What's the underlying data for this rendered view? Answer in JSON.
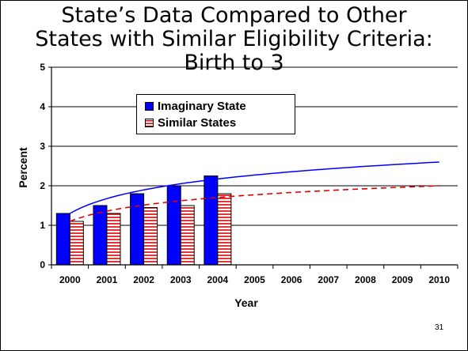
{
  "slide": {
    "title_lines": [
      "State’s Data Compared to Other",
      "States with Similar Eligibility Criteria:",
      "Birth to 3"
    ],
    "page_number": "31"
  },
  "colors": {
    "imaginary": "#0000ff",
    "similar_stripe": "#e00000",
    "similar_trend": "#e00000",
    "imaginary_trend": "#0000ff"
  },
  "chart_data": {
    "type": "bar",
    "categories": [
      "2000",
      "2001",
      "2002",
      "2003",
      "2004",
      "2005",
      "2006",
      "2007",
      "2008",
      "2009",
      "2010"
    ],
    "series": [
      {
        "name": "Imaginary State",
        "values": [
          1.3,
          1.5,
          1.8,
          2.0,
          2.25,
          null,
          null,
          null,
          null,
          null,
          null
        ]
      },
      {
        "name": "Similar States",
        "values": [
          1.1,
          1.3,
          1.45,
          1.5,
          1.8,
          null,
          null,
          null,
          null,
          null,
          null
        ]
      }
    ],
    "trendlines": [
      {
        "series": "Imaginary State",
        "style": "solid",
        "kind": "logarithmic",
        "start": 1.3,
        "end": 2.6
      },
      {
        "series": "Similar States",
        "style": "dashed",
        "kind": "logarithmic",
        "start": 1.1,
        "end": 2.0
      }
    ],
    "ylabel": "Percent",
    "xlabel": "Year",
    "ylim": [
      0,
      5
    ],
    "yticks": [
      "0",
      "1",
      "2",
      "3",
      "4",
      "5"
    ],
    "grid": true,
    "legend_position": "top-left"
  }
}
